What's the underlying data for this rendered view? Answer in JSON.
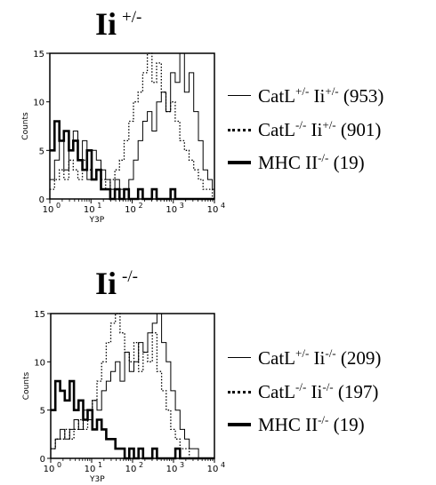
{
  "chart_data": [
    {
      "type": "line",
      "title": "Ii",
      "title_sup": "+/-",
      "xlabel": "Y3P",
      "ylabel": "Counts",
      "xscale": "log",
      "xlim": [
        1,
        10000
      ],
      "ylim": [
        0,
        15
      ],
      "x_tick_labels": [
        "10",
        "10",
        "10",
        "10",
        "10"
      ],
      "x_tick_exponents": [
        "0",
        "1",
        "2",
        "3",
        "4"
      ],
      "y_tick_labels": [
        "0",
        "5",
        "10",
        "15"
      ],
      "legend_position": "right",
      "series": [
        {
          "name": "CatL+/- Ii+/- (953)",
          "style": "solid-thin",
          "x": [
            1.0,
            1.3,
            1.7,
            2.2,
            2.9,
            3.7,
            4.8,
            6.2,
            8.0,
            10.4,
            13.5,
            17.5,
            22.7,
            29.4,
            38.1,
            49.4,
            64.0,
            83.0,
            107.6,
            139.5,
            180.8,
            234.4,
            303.9,
            393.9,
            510.7,
            662.0,
            858.2,
            1112.5,
            1442.2,
            1869.6,
            2423.6,
            3141.8,
            4072.9,
            5279.8,
            6844.4,
            8872.6,
            10000.0
          ],
          "values": [
            2,
            4,
            6,
            3,
            5,
            7,
            4,
            6,
            2,
            5,
            4,
            3,
            2,
            1,
            2,
            1,
            1,
            2,
            4,
            6,
            8,
            9,
            7,
            10,
            11,
            9,
            13,
            12,
            15,
            11,
            13,
            9,
            6,
            3,
            2,
            1,
            0
          ]
        },
        {
          "name": "CatL-/- Ii+/- (901)",
          "style": "dotted",
          "x": [
            1.0,
            1.3,
            1.7,
            2.2,
            2.9,
            3.7,
            4.8,
            6.2,
            8.0,
            10.4,
            13.5,
            17.5,
            22.7,
            29.4,
            38.1,
            49.4,
            64.0,
            83.0,
            107.6,
            139.5,
            180.8,
            234.4,
            303.9,
            393.9,
            510.7,
            662.0,
            858.2,
            1112.5,
            1442.2,
            1869.6,
            2423.6,
            3141.8,
            4072.9,
            5279.8,
            6844.4,
            8872.6,
            10000.0
          ],
          "values": [
            1,
            2,
            3,
            2,
            4,
            3,
            2,
            4,
            3,
            2,
            3,
            2,
            1,
            2,
            3,
            4,
            6,
            8,
            10,
            11,
            13,
            15,
            12,
            14,
            11,
            9,
            10,
            8,
            6,
            5,
            4,
            3,
            2,
            1,
            1,
            0,
            0
          ]
        },
        {
          "name": "MHC II-/- (19)",
          "style": "solid-bold",
          "x": [
            1.0,
            1.3,
            1.7,
            2.2,
            2.9,
            3.7,
            4.8,
            6.2,
            8.0,
            10.4,
            13.5,
            17.5,
            22.7,
            29.4,
            38.1,
            49.4,
            64.0,
            83.0,
            107.6,
            139.5,
            180.8,
            234.4,
            303.9,
            393.9,
            510.7,
            662.0,
            858.2,
            1112.5,
            1442.2,
            1869.6,
            2423.6,
            3141.8,
            4072.9,
            5279.8,
            6844.4,
            8872.6,
            10000.0
          ],
          "values": [
            5,
            8,
            6,
            7,
            5,
            6,
            4,
            3,
            5,
            2,
            3,
            1,
            1,
            0,
            1,
            0,
            1,
            0,
            0,
            1,
            0,
            0,
            1,
            0,
            0,
            0,
            1,
            0,
            0,
            0,
            0,
            0,
            0,
            0,
            0,
            0,
            0
          ]
        }
      ],
      "legend": [
        {
          "base": "CatL",
          "sup1": "+/-",
          "mid": " Ii",
          "sup2": "+/-",
          "tail": " (953)"
        },
        {
          "base": "CatL",
          "sup1": "-/-",
          "mid": " Ii",
          "sup2": "+/-",
          "tail": " (901)"
        },
        {
          "base": "MHC II",
          "sup1": "-/-",
          "mid": "",
          "sup2": "",
          "tail": " (19)"
        }
      ]
    },
    {
      "type": "line",
      "title": "Ii",
      "title_sup": "-/-",
      "xlabel": "Y3P",
      "ylabel": "Counts",
      "xscale": "log",
      "xlim": [
        1,
        10000
      ],
      "ylim": [
        0,
        15
      ],
      "x_tick_labels": [
        "10",
        "10",
        "10",
        "10",
        "10"
      ],
      "x_tick_exponents": [
        "0",
        "1",
        "2",
        "3",
        "4"
      ],
      "y_tick_labels": [
        "0",
        "5",
        "10",
        "15"
      ],
      "legend_position": "right",
      "series": [
        {
          "name": "CatL+/- Ii-/- (209)",
          "style": "solid-thin",
          "x": [
            1.0,
            1.3,
            1.7,
            2.2,
            2.9,
            3.7,
            4.8,
            6.2,
            8.0,
            10.4,
            13.5,
            17.5,
            22.7,
            29.4,
            38.1,
            49.4,
            64.0,
            83.0,
            107.6,
            139.5,
            180.8,
            234.4,
            303.9,
            393.9,
            510.7,
            662.0,
            858.2,
            1112.5,
            1442.2,
            1869.6,
            2423.6,
            3141.8,
            4072.9,
            5279.8,
            6844.4,
            8872.6,
            10000.0
          ],
          "values": [
            1,
            2,
            3,
            2,
            3,
            4,
            3,
            5,
            4,
            6,
            5,
            7,
            8,
            9,
            10,
            8,
            11,
            9,
            10,
            12,
            11,
            13,
            14,
            15,
            12,
            10,
            7,
            5,
            3,
            2,
            1,
            1,
            0,
            0,
            0,
            0,
            0
          ]
        },
        {
          "name": "CatL-/- Ii-/- (197)",
          "style": "dotted",
          "x": [
            1.0,
            1.3,
            1.7,
            2.2,
            2.9,
            3.7,
            4.8,
            6.2,
            8.0,
            10.4,
            13.5,
            17.5,
            22.7,
            29.4,
            38.1,
            49.4,
            64.0,
            83.0,
            107.6,
            139.5,
            180.8,
            234.4,
            303.9,
            393.9,
            510.7,
            662.0,
            858.2,
            1112.5,
            1442.2,
            1869.6,
            2423.6,
            3141.8,
            4072.9,
            5279.8,
            6844.4,
            8872.6,
            10000.0
          ],
          "values": [
            1,
            2,
            2,
            3,
            2,
            3,
            4,
            3,
            5,
            6,
            8,
            10,
            12,
            14,
            15,
            13,
            11,
            10,
            12,
            9,
            11,
            10,
            13,
            9,
            7,
            5,
            3,
            2,
            1,
            1,
            0,
            0,
            0,
            0,
            0,
            0,
            0
          ]
        },
        {
          "name": "MHC II-/- (19)",
          "style": "solid-bold",
          "x": [
            1.0,
            1.3,
            1.7,
            2.2,
            2.9,
            3.7,
            4.8,
            6.2,
            8.0,
            10.4,
            13.5,
            17.5,
            22.7,
            29.4,
            38.1,
            49.4,
            64.0,
            83.0,
            107.6,
            139.5,
            180.8,
            234.4,
            303.9,
            393.9,
            510.7,
            662.0,
            858.2,
            1112.5,
            1442.2,
            1869.6,
            2423.6,
            3141.8,
            4072.9,
            5279.8,
            6844.4,
            8872.6,
            10000.0
          ],
          "values": [
            5,
            8,
            7,
            6,
            8,
            5,
            6,
            4,
            5,
            3,
            4,
            3,
            2,
            2,
            1,
            1,
            0,
            1,
            0,
            1,
            0,
            0,
            1,
            0,
            0,
            0,
            0,
            1,
            0,
            0,
            0,
            0,
            0,
            0,
            0,
            0,
            0
          ]
        }
      ],
      "legend": [
        {
          "base": "CatL",
          "sup1": "+/-",
          "mid": " Ii",
          "sup2": "-/-",
          "tail": " (209)"
        },
        {
          "base": "CatL",
          "sup1": "-/-",
          "mid": " Ii",
          "sup2": "-/-",
          "tail": " (197)"
        },
        {
          "base": "MHC II",
          "sup1": "-/-",
          "mid": "",
          "sup2": "",
          "tail": " (19)"
        }
      ]
    }
  ]
}
